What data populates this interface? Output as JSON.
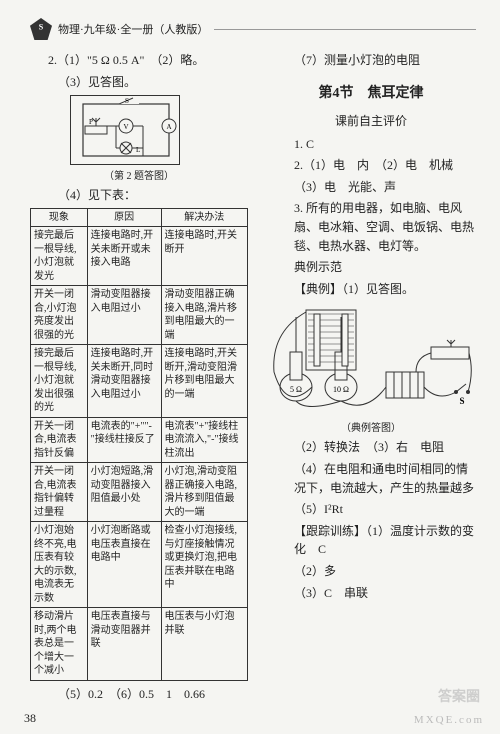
{
  "header": {
    "subject": "物理·九年级·全一册（人教版）"
  },
  "left": {
    "q2_1": "2.（1）\"5 Ω  0.5 A\"　（2）略。",
    "q2_3": "（3）见答图。",
    "circuit_caption": "（第 2 题答图）",
    "q2_4": "（4）见下表：",
    "table": {
      "headers": [
        "现象",
        "原因",
        "解决办法"
      ],
      "rows": [
        [
          "接完最后一根导线,小灯泡就发光",
          "连接电路时,开关未断开或未接入电路",
          "连接电路时,开关断开"
        ],
        [
          "开关一闭合,小灯泡亮度发出很强的光",
          "滑动变阻器接入电阻过小",
          "滑动变阻器正确接入电路,滑片移到电阻最大的一端"
        ],
        [
          "接完最后一根导线,小灯泡就发出很强的光",
          "连接电路时,开关未断开,同时滑动变阻器接入电阻过小",
          "连接电路时,开关断开,滑动变阻滑片移到电阻最大的一端"
        ],
        [
          "开关一闭合,电流表指针反偏",
          "电流表的\"+\"\"-\"接线柱接反了",
          "电流表\"+\"接线柱电流流入,\"-\"接线柱流出"
        ],
        [
          "开关一闭合,电流表指针偏转过量程",
          "小灯泡短路,滑动变阻器接入阻值最小处",
          "小灯泡,滑动变阻器正确接入电路,滑片移到阻值最大的一端"
        ],
        [
          "小灯泡始终不亮,电压表有较大的示数,电流表无示数",
          "小灯泡断路或电压表直接在电路中",
          "检查小灯泡接线,与灯座接触情况或更换灯泡,把电压表并联在电路中"
        ],
        [
          "移动滑片时,两个电表总是一个增大一个减小",
          "电压表直接与滑动变阻器并联",
          "电压表与小灯泡并联"
        ]
      ]
    },
    "q2_56": "（5）0.2　（6）0.5　1　0.66"
  },
  "right": {
    "q7": "（7）测量小灯泡的电阻",
    "section": "第4节　焦耳定律",
    "pre_title": "课前自主评价",
    "a1": "1. C",
    "a2_1": "2.（1）电　内　（2）电　机械",
    "a2_3": "（3）电　光能、声",
    "a3": "3. 所有的用电器，如电脑、电风扇、电冰箱、空调、电饭锅、电热毯、电热水器、电灯等。",
    "ex_title": "典例示范",
    "ex1": "【典例】（1）见答图。",
    "diagram_caption": "（典例答图）",
    "ex2": "（2）转换法　（3）右　电阻",
    "ex4": "（4）在电阻和通电时间相同的情况下，电流越大，产生的热量越多",
    "ex5": "（5）I²Rt",
    "follow_title": "【跟踪训练】（1）温度计示数的变化　C",
    "follow2": "（2）多",
    "follow3": "（3）C　串联"
  },
  "page": "38",
  "watermark_main": "答案圈",
  "watermark_sub": "MXQE.com"
}
